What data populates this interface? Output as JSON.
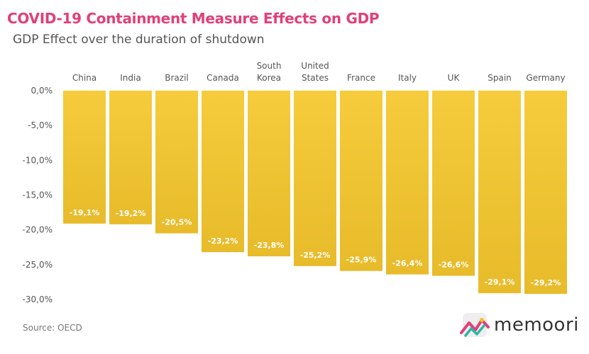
{
  "header": {
    "title": "COVID-19 Containment Measure Effects on GDP",
    "subtitle": "GDP Effect over the duration of shutdown"
  },
  "footer": {
    "source": "Source: OECD",
    "brand": "memoori"
  },
  "colors": {
    "bar_top": "#f6cc3c",
    "bar_bottom": "#e7bb2a",
    "title": "#e0407a"
  },
  "chart_data": {
    "type": "bar",
    "categories": [
      "China",
      "India",
      "Brazil",
      "Canada",
      "South Korea",
      "United States",
      "France",
      "Italy",
      "UK",
      "Spain",
      "Germany"
    ],
    "category_lines": [
      [
        "China"
      ],
      [
        "India"
      ],
      [
        "Brazil"
      ],
      [
        "Canada"
      ],
      [
        "South",
        "Korea"
      ],
      [
        "United",
        "States"
      ],
      [
        "France"
      ],
      [
        "Italy"
      ],
      [
        "UK"
      ],
      [
        "Spain"
      ],
      [
        "Germany"
      ]
    ],
    "values": [
      -19.1,
      -19.2,
      -20.5,
      -23.2,
      -23.8,
      -25.2,
      -25.9,
      -26.4,
      -26.6,
      -29.1,
      -29.2
    ],
    "data_labels": [
      "-19,1%",
      "-19,2%",
      "-20,5%",
      "-23,2%",
      "-23,8%",
      "-25,2%",
      "-25,9%",
      "-26,4%",
      "-26,6%",
      "-29,1%",
      "-29,2%"
    ],
    "ylim": [
      -30,
      0
    ],
    "yticks": [
      0,
      -5,
      -10,
      -15,
      -20,
      -25,
      -30
    ],
    "ytick_labels": [
      "0,0%",
      "-5,0%",
      "-10,0%",
      "-15,0%",
      "-20,0%",
      "-25,0%",
      "-30,0%"
    ],
    "category_axis_position": "top",
    "grid": false
  }
}
